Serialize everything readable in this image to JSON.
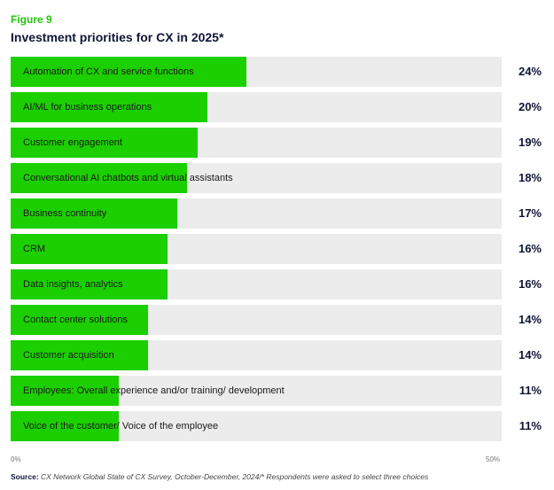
{
  "figure_label": "Figure 9",
  "chart_data": {
    "type": "bar",
    "orientation": "horizontal",
    "title": "Investment priorities for CX in 2025*",
    "categories": [
      "Automation of CX and service functions",
      "AI/ML for business operations",
      "Customer engagement",
      "Conversational AI chatbots and virtual assistants",
      "Business continuity",
      "CRM",
      "Data insights, analytics",
      "Contact center solutions",
      "Customer acquisition",
      "Employees: Overall experience and/or training/ development",
      "Voice of the customer/ Voice of the employee"
    ],
    "values": [
      24,
      20,
      19,
      18,
      17,
      16,
      16,
      14,
      14,
      11,
      11
    ],
    "value_labels": [
      "24%",
      "20%",
      "19%",
      "18%",
      "17%",
      "16%",
      "16%",
      "14%",
      "14%",
      "11%",
      "11%"
    ],
    "xlim": [
      0,
      50
    ],
    "x_ticks": [
      "0%",
      "50%"
    ],
    "colors": {
      "bar": "#1ccf00",
      "track": "#ececec",
      "label": "#0f1635",
      "figure_label": "#22c40a"
    }
  },
  "source": {
    "label": "Source:",
    "text": " CX Network Global State of CX Survey, October-December, 2024/* Respondents were asked to select three choices"
  }
}
